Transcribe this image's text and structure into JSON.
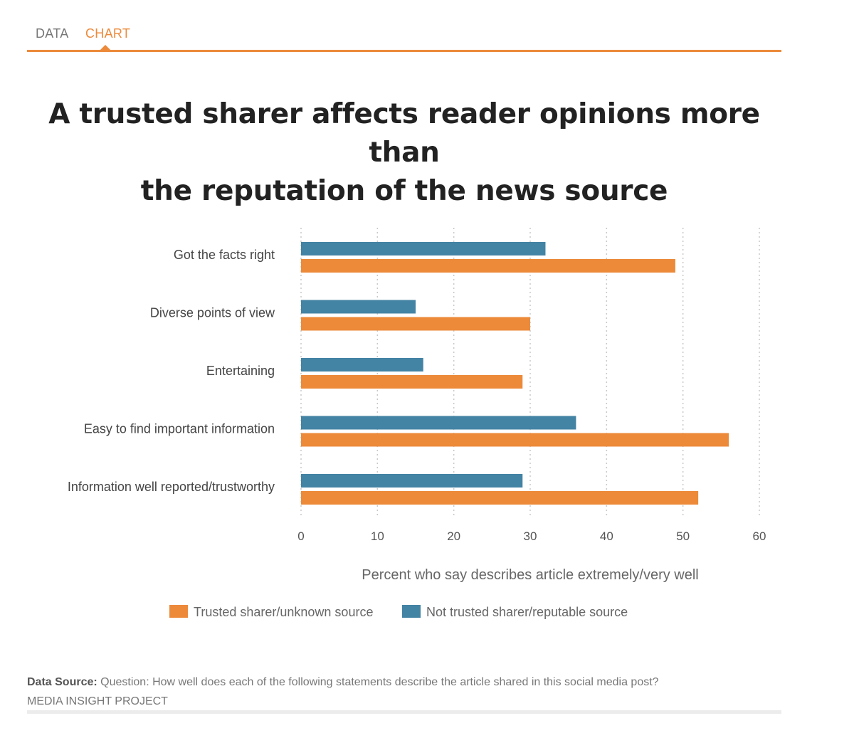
{
  "tabs": [
    {
      "label": "DATA",
      "active": false
    },
    {
      "label": "CHART",
      "active": true
    }
  ],
  "colors": {
    "accent": "#ec8a3a",
    "series_trusted": "#ec8a3a",
    "series_not_trusted": "#4383a3"
  },
  "chart_data": {
    "type": "bar",
    "orientation": "horizontal",
    "title": "A trusted sharer affects reader opinions more than the reputation of the news source",
    "title_lines": [
      "A trusted sharer affects reader opinions more than",
      "the reputation of the news source"
    ],
    "xlabel": "Percent who say describes article extremely/very well",
    "ylabel": "",
    "categories": [
      "Got the facts right",
      "Diverse points of view",
      "Entertaining",
      "Easy to find important information",
      "Information well reported/trustworthy"
    ],
    "series": [
      {
        "name": "Not trusted sharer/reputable source",
        "color": "#4383a3",
        "values": [
          32,
          15,
          16,
          36,
          29
        ]
      },
      {
        "name": "Trusted sharer/unknown source",
        "color": "#ec8a3a",
        "values": [
          49,
          30,
          29,
          56,
          52
        ]
      }
    ],
    "xlim": [
      0,
      60
    ],
    "xticks": [
      0,
      10,
      20,
      30,
      40,
      50,
      60
    ],
    "grid": true,
    "legend": [
      {
        "label": "Trusted sharer/unknown source",
        "color": "#ec8a3a"
      },
      {
        "label": "Not trusted sharer/reputable source",
        "color": "#4383a3"
      }
    ],
    "legend_position": "bottom"
  },
  "source": {
    "label": "Data Source:",
    "text": "Question: How well does each of the following statements describe the article shared in this social media post?",
    "org": "MEDIA INSIGHT PROJECT"
  }
}
